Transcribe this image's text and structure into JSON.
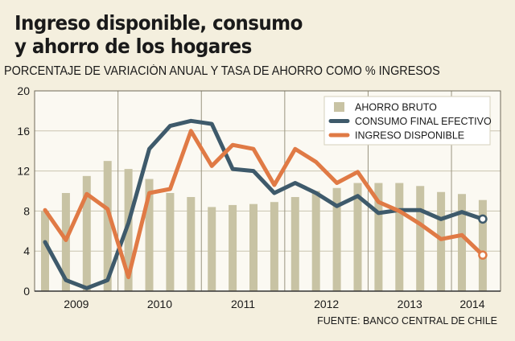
{
  "chart_data": {
    "type": "bar+line",
    "title_line1": "Ingreso disponible, consumo",
    "title_line2": "y ahorro de los hogares",
    "subtitle": "PORCENTAJE DE VARIACIÓN ANUAL Y TASA DE AHORRO COMO % INGRESOS",
    "source": "FUENTE: BANCO CENTRAL DE CHILE",
    "ylim": [
      0,
      20
    ],
    "yticks": [
      "0",
      "4",
      "8",
      "12",
      "16",
      "20"
    ],
    "ytick_values": [
      0,
      4,
      8,
      12,
      16,
      20
    ],
    "years": [
      "2009",
      "2010",
      "2011",
      "2012",
      "2013",
      "2014"
    ],
    "quarters": [
      "2009-Q1",
      "2009-Q2",
      "2009-Q3",
      "2009-Q4",
      "2010-Q1",
      "2010-Q2",
      "2010-Q3",
      "2010-Q4",
      "2011-Q1",
      "2011-Q2",
      "2011-Q3",
      "2011-Q4",
      "2012-Q1",
      "2012-Q2",
      "2012-Q3",
      "2012-Q4",
      "2013-Q1",
      "2013-Q2",
      "2013-Q3",
      "2013-Q4",
      "2014-Q1",
      "2014-Q2"
    ],
    "series": [
      {
        "name": "AHORRO BRUTO",
        "kind": "bar",
        "color": "#c8c3a4",
        "values": [
          8.0,
          9.8,
          11.5,
          13.0,
          12.2,
          11.2,
          9.8,
          9.4,
          8.4,
          8.6,
          8.7,
          8.9,
          9.4,
          10.0,
          10.3,
          10.8,
          10.8,
          10.8,
          10.5,
          9.9,
          9.7,
          9.1
        ]
      },
      {
        "name": "CONSUMO FINAL EFECTIVO",
        "kind": "line",
        "color": "#3e5a6b",
        "values": [
          4.9,
          1.1,
          0.3,
          1.1,
          6.8,
          14.2,
          16.5,
          17.0,
          16.7,
          12.2,
          12.0,
          9.8,
          10.8,
          9.8,
          8.5,
          9.5,
          7.8,
          8.1,
          8.1,
          7.2,
          7.9,
          7.2
        ]
      },
      {
        "name": "INGRESO DISPONIBLE",
        "kind": "line",
        "color": "#e07a45",
        "values": [
          8.1,
          5.1,
          9.7,
          8.2,
          1.4,
          9.8,
          10.2,
          16.0,
          12.5,
          14.6,
          14.2,
          10.6,
          14.2,
          12.9,
          10.8,
          11.9,
          8.9,
          8.0,
          6.7,
          5.2,
          5.6,
          3.6
        ]
      }
    ],
    "legend_position": "top-right",
    "grid": "horizontal-and-year-separators"
  }
}
